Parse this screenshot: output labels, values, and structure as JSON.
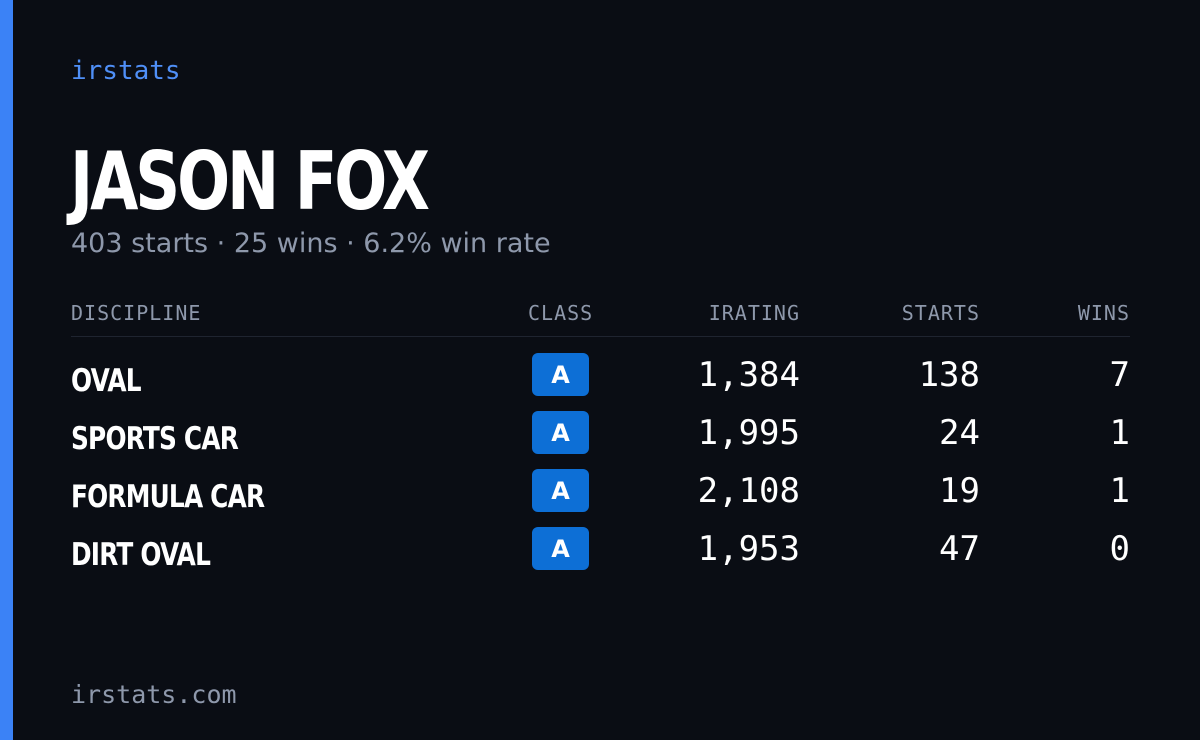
{
  "brand": {
    "label": "irstats",
    "accent_color": "#3b82f6"
  },
  "player": {
    "name": "JASON FOX",
    "summary": "403 starts · 25 wins · 6.2% win rate"
  },
  "table": {
    "headers": {
      "discipline": "DISCIPLINE",
      "class": "CLASS",
      "irating": "IRATING",
      "starts": "STARTS",
      "wins": "WINS"
    },
    "rows": [
      {
        "discipline": "OVAL",
        "class": "A",
        "irating": "1,384",
        "starts": "138",
        "wins": "7"
      },
      {
        "discipline": "SPORTS CAR",
        "class": "A",
        "irating": "1,995",
        "starts": "24",
        "wins": "1"
      },
      {
        "discipline": "FORMULA CAR",
        "class": "A",
        "irating": "2,108",
        "starts": "19",
        "wins": "1"
      },
      {
        "discipline": "DIRT OVAL",
        "class": "A",
        "irating": "1,953",
        "starts": "47",
        "wins": "0"
      }
    ],
    "class_badge_color": "#0d6fd6"
  },
  "footer": {
    "url": "irstats.com"
  }
}
